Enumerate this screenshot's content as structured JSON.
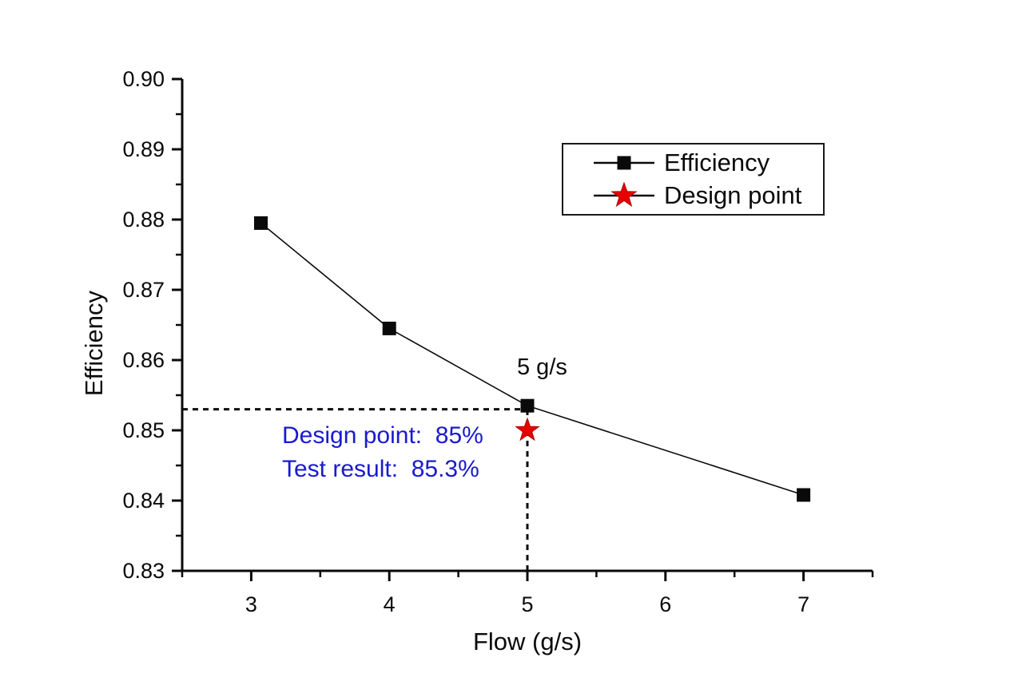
{
  "chart_data": {
    "type": "line",
    "title": "",
    "xlabel": "Flow (g/s)",
    "ylabel": "Efficiency",
    "xlim": [
      2.5,
      7.5
    ],
    "ylim": [
      0.83,
      0.9
    ],
    "grid": false,
    "x_ticks": {
      "major": [
        3,
        4,
        5,
        6,
        7
      ],
      "labels": [
        "3",
        "4",
        "5",
        "6",
        "7"
      ],
      "minor": [
        2.5,
        3.5,
        4.5,
        5.5,
        6.5,
        7.5
      ]
    },
    "y_ticks": {
      "major": [
        0.83,
        0.84,
        0.85,
        0.86,
        0.87,
        0.88,
        0.89,
        0.9
      ],
      "labels": [
        "0.83",
        "0.84",
        "0.85",
        "0.86",
        "0.87",
        "0.88",
        "0.89",
        "0.90"
      ],
      "minor": [
        0.835,
        0.845,
        0.855,
        0.865,
        0.875,
        0.885,
        0.895
      ]
    },
    "series": [
      {
        "name": "Efficiency",
        "type": "line",
        "marker": "square",
        "color": "#0a0a0a",
        "points": [
          {
            "x": 3.07,
            "y": 0.8795
          },
          {
            "x": 4.0,
            "y": 0.8645
          },
          {
            "x": 5.0,
            "y": 0.8535
          },
          {
            "x": 7.0,
            "y": 0.8408
          }
        ]
      },
      {
        "name": "Design point",
        "type": "scatter",
        "marker": "star",
        "color": "#e60000",
        "points": [
          {
            "x": 5.0,
            "y": 0.85
          }
        ]
      }
    ],
    "reference_lines": [
      {
        "orientation": "horizontal",
        "y": 0.853,
        "from_x": 2.5,
        "to_x": 5.0,
        "style": "dashed",
        "color": "#0a0a0a"
      },
      {
        "orientation": "vertical",
        "x": 5.0,
        "from_y": 0.83,
        "to_y": 0.853,
        "style": "dashed",
        "color": "#0a0a0a"
      }
    ],
    "annotations": [
      {
        "text": "5 g/s",
        "color": "#0a0a0a"
      },
      {
        "text": "Design point:  85%",
        "color": "#1a1acd"
      },
      {
        "text": "Test result:  85.3%",
        "color": "#1a1acd"
      }
    ],
    "legend": {
      "position": "upper-right",
      "items": [
        {
          "label": "Efficiency",
          "marker": "square",
          "color": "#0a0a0a"
        },
        {
          "label": "Design point",
          "marker": "star",
          "color": "#e60000"
        }
      ]
    }
  }
}
